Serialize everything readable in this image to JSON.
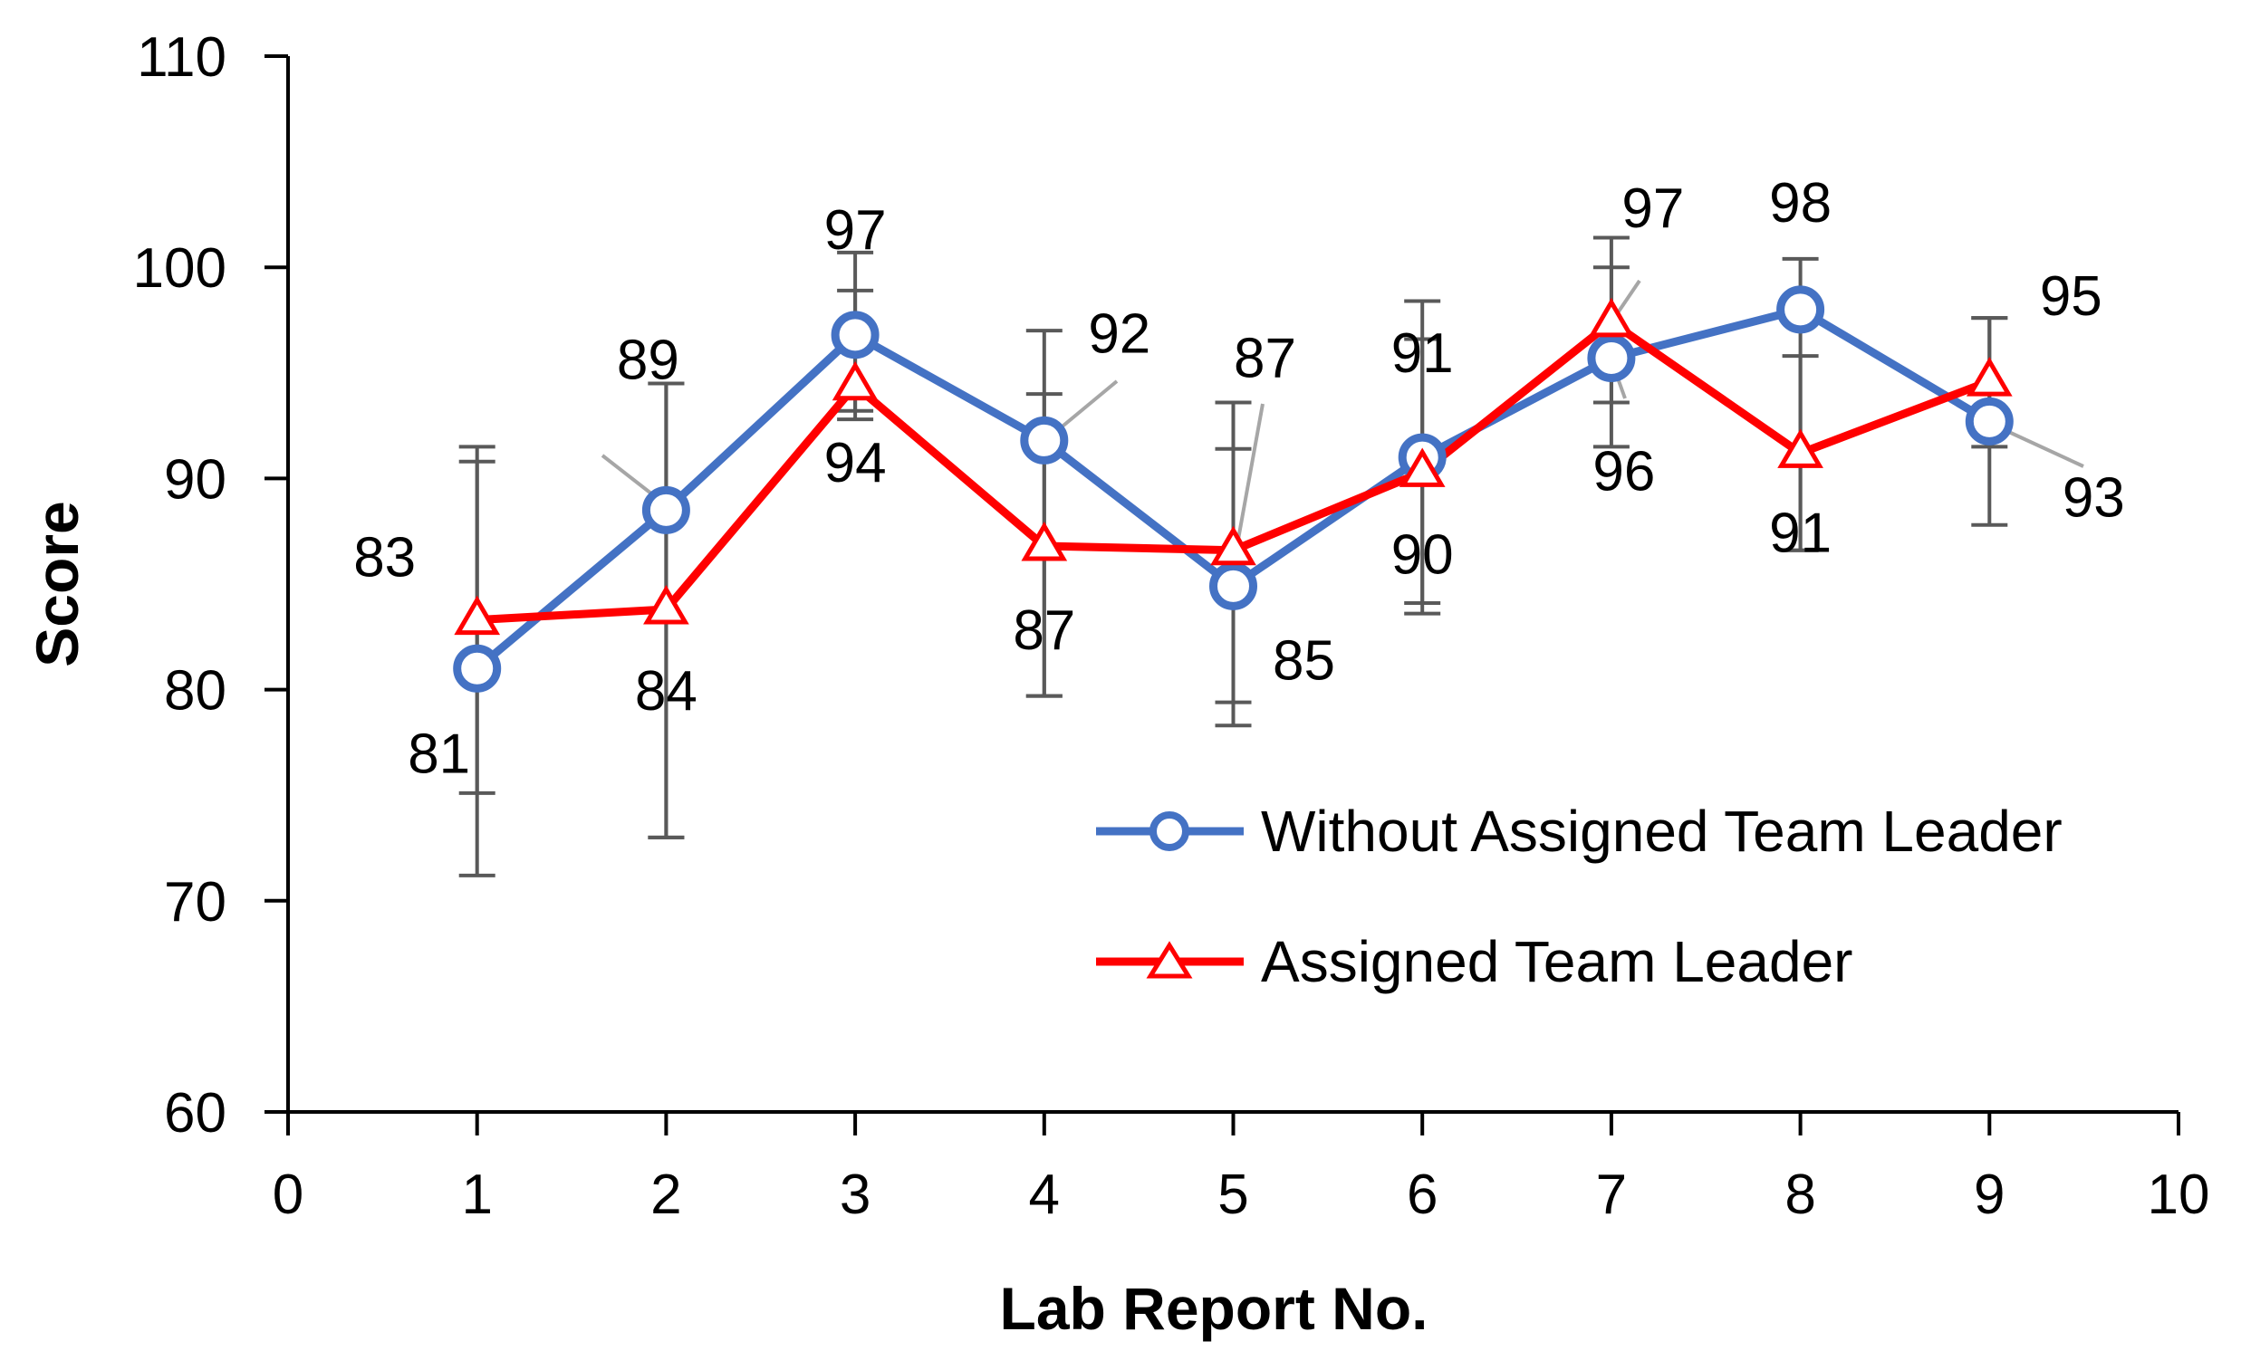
{
  "chart_data": {
    "type": "line",
    "title": "",
    "xlabel": "Lab Report No.",
    "ylabel": "Score",
    "xlim": [
      0,
      10
    ],
    "ylim": [
      60,
      110
    ],
    "x_ticks": [
      0,
      1,
      2,
      3,
      4,
      5,
      6,
      7,
      8,
      9,
      10
    ],
    "y_ticks": [
      60,
      70,
      80,
      90,
      100,
      110
    ],
    "grid": false,
    "legend_position": "bottom-right",
    "series": [
      {
        "name": "Without Assigned Team Leader",
        "color": "#4472c4",
        "marker": "circle",
        "x": [
          1,
          2,
          3,
          4,
          5,
          6,
          7,
          8,
          9
        ],
        "values": [
          81,
          88.5,
          96.8,
          91.8,
          84.9,
          91,
          95.7,
          98,
          92.7
        ],
        "labels": [
          "81",
          "89",
          "97",
          "92",
          "85",
          "91",
          "96",
          "98",
          "93"
        ],
        "error_low": [
          71.2,
          73,
          92.8,
          79.7,
          79.4,
          84.1,
          91.5,
          86.6,
          87.8
        ],
        "error_high": [
          90.8,
          94.5,
          100.7,
          97,
          93.6,
          98.4,
          100,
          100.4,
          97.6
        ]
      },
      {
        "name": "Assigned Team Leader",
        "color": "#ff0000",
        "marker": "triangle",
        "x": [
          1,
          2,
          3,
          4,
          5,
          6,
          7,
          8,
          9
        ],
        "values": [
          83.3,
          83.8,
          94.4,
          86.8,
          86.6,
          90.3,
          97.4,
          91.2,
          94.6
        ],
        "labels": [
          "83",
          "84",
          "94",
          "87",
          "87",
          "90",
          "97",
          "91",
          "95"
        ],
        "error_low": [
          75.1,
          73,
          93.2,
          79.7,
          78.3,
          83.6,
          93.6,
          86.6,
          91.5
        ],
        "error_high": [
          91.5,
          94.5,
          98.9,
          94,
          91.4,
          96.6,
          101.4,
          95.8,
          97.6
        ]
      }
    ]
  }
}
